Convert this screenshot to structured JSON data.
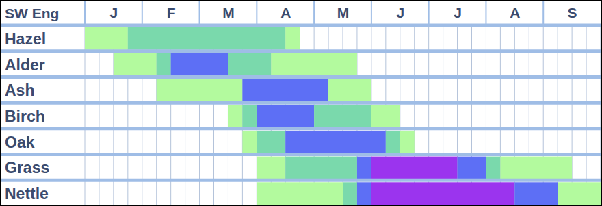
{
  "chart_data": {
    "type": "timeline",
    "title": "SW Eng",
    "xlim": [
      0,
      36
    ],
    "xticks": [
      {
        "value": 2,
        "label": "J"
      },
      {
        "value": 6,
        "label": "F"
      },
      {
        "value": 10,
        "label": "M"
      },
      {
        "value": 14,
        "label": "A"
      },
      {
        "value": 18,
        "label": "M"
      },
      {
        "value": 22,
        "label": "J"
      },
      {
        "value": 26,
        "label": "J"
      },
      {
        "value": 30,
        "label": "A"
      },
      {
        "value": 34,
        "label": "S"
      }
    ],
    "grid": true,
    "colors": [
      "#b3fa9e",
      "#7ad9ac",
      "#5d6ff5",
      "#9b34ee"
    ],
    "rows": [
      {
        "label": "Hazel",
        "segments": [
          {
            "start": 0,
            "end": 3,
            "level": 1
          },
          {
            "start": 3,
            "end": 14,
            "level": 2
          },
          {
            "start": 14,
            "end": 15,
            "level": 1
          }
        ]
      },
      {
        "label": "Alder",
        "segments": [
          {
            "start": 2,
            "end": 5,
            "level": 1
          },
          {
            "start": 5,
            "end": 6,
            "level": 2
          },
          {
            "start": 6,
            "end": 10,
            "level": 3
          },
          {
            "start": 10,
            "end": 13,
            "level": 2
          },
          {
            "start": 13,
            "end": 19,
            "level": 1
          }
        ]
      },
      {
        "label": "Ash",
        "segments": [
          {
            "start": 5,
            "end": 11,
            "level": 1
          },
          {
            "start": 11,
            "end": 17,
            "level": 3
          },
          {
            "start": 17,
            "end": 20,
            "level": 1
          }
        ]
      },
      {
        "label": "Birch",
        "segments": [
          {
            "start": 10,
            "end": 11,
            "level": 1
          },
          {
            "start": 11,
            "end": 12,
            "level": 2
          },
          {
            "start": 12,
            "end": 16,
            "level": 3
          },
          {
            "start": 16,
            "end": 20,
            "level": 2
          },
          {
            "start": 20,
            "end": 22,
            "level": 1
          }
        ]
      },
      {
        "label": "Oak",
        "segments": [
          {
            "start": 11,
            "end": 12,
            "level": 1
          },
          {
            "start": 12,
            "end": 14,
            "level": 2
          },
          {
            "start": 14,
            "end": 21,
            "level": 3
          },
          {
            "start": 21,
            "end": 22,
            "level": 2
          },
          {
            "start": 22,
            "end": 23,
            "level": 1
          }
        ]
      },
      {
        "label": "Grass",
        "segments": [
          {
            "start": 12,
            "end": 14,
            "level": 1
          },
          {
            "start": 14,
            "end": 19,
            "level": 2
          },
          {
            "start": 19,
            "end": 20,
            "level": 3
          },
          {
            "start": 20,
            "end": 26,
            "level": 4
          },
          {
            "start": 26,
            "end": 28,
            "level": 3
          },
          {
            "start": 28,
            "end": 29,
            "level": 2
          },
          {
            "start": 29,
            "end": 34,
            "level": 1
          }
        ]
      },
      {
        "label": "Nettle",
        "segments": [
          {
            "start": 12,
            "end": 18,
            "level": 1
          },
          {
            "start": 18,
            "end": 19,
            "level": 2
          },
          {
            "start": 19,
            "end": 20,
            "level": 3
          },
          {
            "start": 20,
            "end": 30,
            "level": 4
          },
          {
            "start": 30,
            "end": 33,
            "level": 3
          },
          {
            "start": 33,
            "end": 36,
            "level": 1
          }
        ]
      }
    ]
  }
}
